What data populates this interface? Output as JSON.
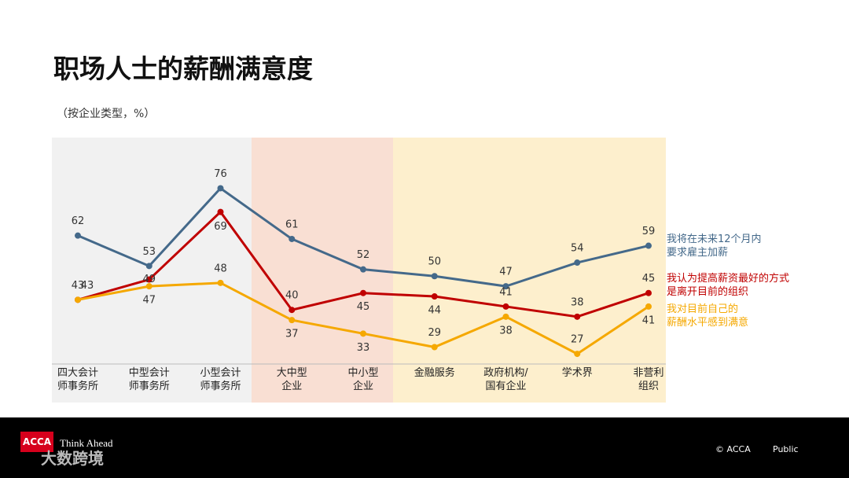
{
  "chart_data": {
    "type": "line",
    "title": "职场人士的薪酬满意度",
    "subtitle": "（按企业类型，%）",
    "categories": [
      "四大会计\n师事务所",
      "中型会计\n师事务所",
      "小型会计\n师事务所",
      "大中型\n企业",
      "中小型\n企业",
      "金融服务",
      "政府机构/\n国有企业",
      "学术界",
      "非营利\n组织"
    ],
    "series": [
      {
        "name": "我将在未来12个月内\n要求雇主加薪",
        "color": "#44698a",
        "values": [
          62,
          53,
          76,
          61,
          52,
          50,
          47,
          54,
          59
        ]
      },
      {
        "name": "我认为提高薪资最好的方式\n是离开目前的组织",
        "color": "#c00000",
        "values": [
          43,
          49,
          69,
          40,
          45,
          44,
          41,
          38,
          45
        ]
      },
      {
        "name": "我对目前自己的\n薪酬水平感到满意",
        "color": "#f5a800",
        "values": [
          43,
          47,
          48,
          37,
          33,
          29,
          38,
          27,
          41
        ]
      }
    ],
    "ylim": [
      24,
      91
    ]
  },
  "footer": {
    "logo": "ACCA",
    "tagline": "Think Ahead",
    "copyright": "© ACCA",
    "classification": "Public",
    "watermark": "大数跨境"
  }
}
